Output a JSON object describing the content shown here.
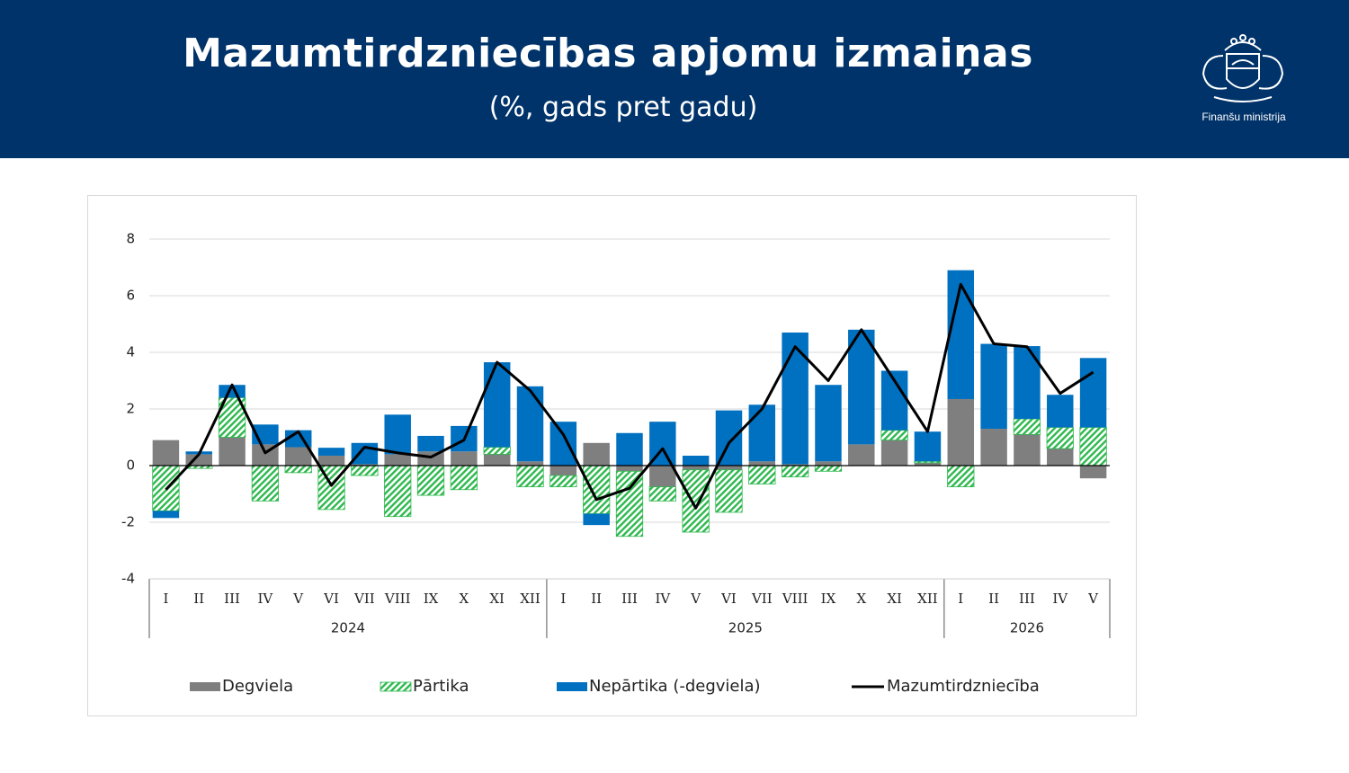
{
  "header": {
    "title": "Mazumtirdzniecības apjomu izmaiņas",
    "subtitle": "(%, gads pret gadu)",
    "logo_text": "Finanšu ministrija"
  },
  "chart_data": {
    "type": "bar",
    "stacked": true,
    "groups": [
      {
        "label": "2024",
        "categories": [
          "I",
          "II",
          "III",
          "IV",
          "V",
          "VI",
          "VII",
          "VIII",
          "IX",
          "X",
          "XI",
          "XII"
        ]
      },
      {
        "label": "2025",
        "categories": [
          "I",
          "II",
          "III",
          "IV",
          "V",
          "VI",
          "VII",
          "VIII",
          "IX",
          "X",
          "XI",
          "XII"
        ]
      },
      {
        "label": "2026",
        "categories": [
          "I",
          "II",
          "III",
          "IV",
          "V"
        ]
      }
    ],
    "series": [
      {
        "name": "Degviela",
        "color": "#7f7f7f",
        "values": [
          0.9,
          0.4,
          1.0,
          0.75,
          0.65,
          0.35,
          0.05,
          0.4,
          0.5,
          0.5,
          0.4,
          0.15,
          -0.35,
          0.8,
          -0.2,
          -0.75,
          -0.15,
          -0.15,
          0.15,
          0.05,
          0.15,
          0.75,
          0.9,
          0.1,
          2.35,
          1.3,
          1.1,
          0.6,
          -0.45
        ]
      },
      {
        "name": "Pārtika",
        "color": "#2eb84e",
        "pattern": "hatch",
        "values": [
          -1.6,
          -0.1,
          1.4,
          -1.25,
          -0.25,
          -1.55,
          -0.35,
          -1.8,
          -1.05,
          -0.85,
          0.25,
          -0.75,
          -0.4,
          -1.7,
          -2.3,
          -0.5,
          -2.2,
          -1.5,
          -0.65,
          -0.4,
          -0.2,
          0,
          0.35,
          0.05,
          -0.75,
          0,
          0.55,
          0.75,
          1.35
        ]
      },
      {
        "name": "Nepārtika (-degviela)",
        "color": "#0070c0",
        "values": [
          -0.25,
          0.1,
          0.45,
          0.7,
          0.6,
          0.28,
          0.75,
          1.4,
          0.55,
          0.9,
          3.0,
          2.65,
          1.55,
          -0.4,
          1.15,
          1.55,
          0.35,
          1.95,
          2.0,
          4.65,
          2.7,
          4.05,
          2.1,
          1.05,
          4.55,
          3.0,
          2.57,
          1.15,
          2.45
        ]
      },
      {
        "name": "Mazumtirdzniecība",
        "type": "line",
        "color": "#000000",
        "values": [
          -0.85,
          0.4,
          2.85,
          0.45,
          1.2,
          -0.7,
          0.65,
          0.45,
          0.3,
          0.9,
          3.65,
          2.65,
          1.1,
          -1.2,
          -0.8,
          0.6,
          -1.5,
          0.8,
          2.0,
          4.2,
          3.0,
          4.8,
          3.0,
          1.2,
          6.4,
          4.3,
          4.2,
          2.55,
          3.3
        ]
      }
    ],
    "ylim": [
      -4,
      8
    ],
    "yticks": [
      -4,
      -2,
      0,
      2,
      4,
      6,
      8
    ],
    "grid": true,
    "legend": "bottom"
  }
}
